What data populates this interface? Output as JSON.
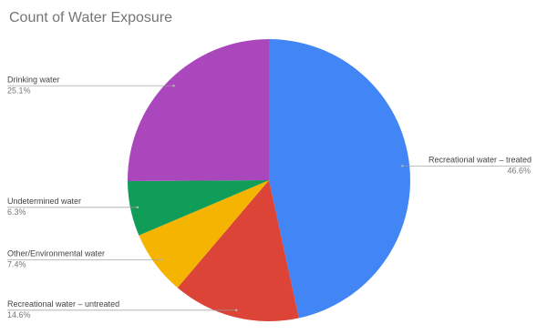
{
  "chart_data": {
    "type": "pie",
    "title": "Count of Water Exposure",
    "categories": [
      "Recreational water – treated",
      "Recreational water – untreated",
      "Other/Environmental water",
      "Undetermined water",
      "Drinking water"
    ],
    "values": [
      46.6,
      14.6,
      7.4,
      6.3,
      25.1
    ],
    "value_labels": [
      "46.6%",
      "14.6%",
      "7.4%",
      "6.3%",
      "25.1%"
    ],
    "colors": [
      "#4285f4",
      "#db4437",
      "#f4b400",
      "#0f9d58",
      "#ab47bc"
    ]
  }
}
